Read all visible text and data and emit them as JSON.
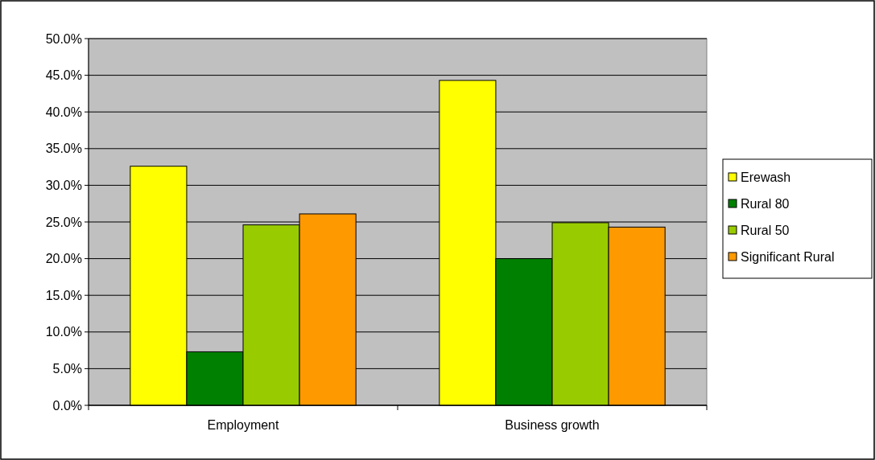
{
  "chart_data": {
    "type": "bar",
    "categories": [
      "Employment",
      "Business growth"
    ],
    "series": [
      {
        "name": "Erewash",
        "color": "#ffff00",
        "values": [
          32.6,
          44.3
        ]
      },
      {
        "name": "Rural 80",
        "color": "#008000",
        "values": [
          7.3,
          20.0
        ]
      },
      {
        "name": "Rural 50",
        "color": "#99cc00",
        "values": [
          24.6,
          24.9
        ]
      },
      {
        "name": "Significant Rural",
        "color": "#ff9900",
        "values": [
          26.1,
          24.3
        ]
      }
    ],
    "ylim": [
      0,
      50
    ],
    "yticks": [
      {
        "value": 0,
        "label": "0.0%"
      },
      {
        "value": 5,
        "label": "5.0%"
      },
      {
        "value": 10,
        "label": "10.0%"
      },
      {
        "value": 15,
        "label": "15.0%"
      },
      {
        "value": 20,
        "label": "20.0%"
      },
      {
        "value": 25,
        "label": "25.0%"
      },
      {
        "value": 30,
        "label": "30.0%"
      },
      {
        "value": 35,
        "label": "35.0%"
      },
      {
        "value": 40,
        "label": "40.0%"
      },
      {
        "value": 45,
        "label": "45.0%"
      },
      {
        "value": 50,
        "label": "50.0%"
      }
    ],
    "grid": "y",
    "legend": "right"
  }
}
